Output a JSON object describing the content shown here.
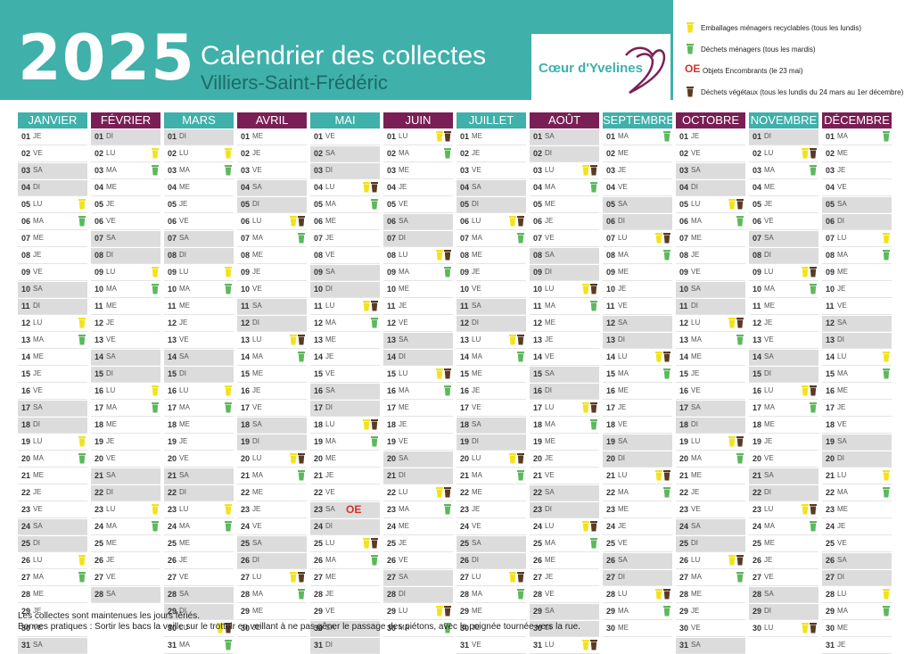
{
  "header": {
    "year": "2025",
    "title": "Calendrier des collectes",
    "subtitle": "Villiers-Saint-Frédéric",
    "logo": "Cœur d'Yvelines"
  },
  "colors": {
    "teal": "#3fb0aa",
    "purple": "#7a1f56",
    "yellow": "#f2e21a",
    "green": "#5cb85c",
    "brown": "#5a3a22",
    "red": "#d4322a"
  },
  "legend": [
    {
      "icon": "yellow-bin-icon",
      "type": "yellow",
      "text": "Emballages ménagers recyclables (tous les lundis)"
    },
    {
      "icon": "green-bin-icon",
      "type": "green",
      "text": "Déchets ménagers (tous les mardis)"
    },
    {
      "icon": "oe",
      "type": "oe",
      "mark": "OE",
      "text": "Objets Encombrants (le 23 mai)"
    },
    {
      "icon": "brown-bin-icon",
      "type": "brown",
      "text": "Déchets végétaux (tous les lundis du 24 mars au 1er décembre)"
    }
  ],
  "months": [
    {
      "name": "JANVIER",
      "color": "teal",
      "start": 3,
      "days": 31
    },
    {
      "name": "FÉVRIER",
      "color": "purple",
      "start": 6,
      "days": 28
    },
    {
      "name": "MARS",
      "color": "teal",
      "start": 6,
      "days": 31
    },
    {
      "name": "AVRIL",
      "color": "purple",
      "start": 2,
      "days": 30
    },
    {
      "name": "MAI",
      "color": "teal",
      "start": 4,
      "days": 31
    },
    {
      "name": "JUIN",
      "color": "purple",
      "start": 0,
      "days": 30
    },
    {
      "name": "JUILLET",
      "color": "teal",
      "start": 2,
      "days": 31
    },
    {
      "name": "AOÛT",
      "color": "purple",
      "start": 5,
      "days": 31
    },
    {
      "name": "SEPTEMBRE",
      "color": "teal",
      "start": 1,
      "days": 30
    },
    {
      "name": "OCTOBRE",
      "color": "purple",
      "start": 3,
      "days": 31
    },
    {
      "name": "NOVEMBRE",
      "color": "teal",
      "start": 6,
      "days": 30
    },
    {
      "name": "DÉCEMBRE",
      "color": "purple",
      "start": 1,
      "days": 31
    }
  ],
  "day_names": [
    "LU",
    "MA",
    "ME",
    "JE",
    "VE",
    "SA",
    "DI"
  ],
  "green_start": {
    "month": 2,
    "day": 24
  },
  "green_end": {
    "month": 11,
    "day": 1
  },
  "oe_day": {
    "month": 4,
    "day": 23,
    "label": "OE"
  },
  "footer": {
    "line1": "Les collectes sont maintenues les jours fériés.",
    "line2": "Bonnes pratiques : Sortir les bacs la veille sur le trottoir en veillant à ne pas gêner le passage des piétons, avec la poignée tournée vers la rue."
  }
}
